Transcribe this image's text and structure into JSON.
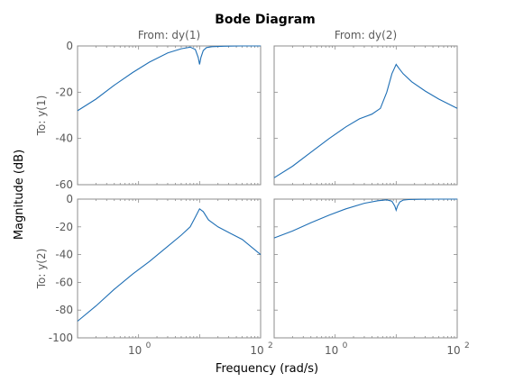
{
  "chart_data": {
    "type": "line",
    "title": "Bode Diagram",
    "xlabel": "Frequency  (rad/s)",
    "ylabel": "Magnitude (dB)",
    "x_scale": "log",
    "xlim": [
      0.1,
      100
    ],
    "x_tick_values": [
      1,
      100
    ],
    "x_tick_labels": [
      "10",
      "10"
    ],
    "x_tick_exponents": [
      "0",
      "2"
    ],
    "column_labels": [
      "From: dy(1)",
      "From: dy(2)"
    ],
    "row_labels": [
      "To: y(1)",
      "To: y(2)"
    ],
    "grid": false,
    "colors": {
      "line": "#1f6fb5",
      "axis": "#8c8c8c",
      "text": "#5a5a5a",
      "title": "#000000"
    },
    "panels": [
      {
        "row": 0,
        "col": 0,
        "ylim": [
          -60,
          0
        ],
        "y_ticks": [
          0,
          -20,
          -40,
          -60
        ],
        "y_tick_labels": [
          "0",
          "-20",
          "-40",
          "-60"
        ],
        "series": [
          {
            "x": [
              0.1,
              0.2,
              0.4,
              0.8,
              1.5,
              3,
              5,
              7,
              8.5,
              9.5,
              10,
              10.5,
              11.5,
              13,
              16,
              25,
              50,
              100
            ],
            "y": [
              -28,
              -23,
              -17,
              -11.5,
              -7,
              -3,
              -1.2,
              -0.5,
              -1.5,
              -5,
              -8,
              -5,
              -2,
              -0.7,
              -0.3,
              -0.1,
              0,
              0
            ]
          }
        ]
      },
      {
        "row": 0,
        "col": 1,
        "ylim": [
          -60,
          0
        ],
        "y_ticks": [
          0,
          -20,
          -40,
          -60
        ],
        "y_tick_labels": [
          "",
          "",
          "",
          ""
        ],
        "series": [
          {
            "x": [
              0.1,
              0.2,
              0.4,
              0.8,
              1.5,
              2.5,
              4,
              5.5,
              7,
              8.5,
              10,
              11,
              13,
              18,
              30,
              50,
              100
            ],
            "y": [
              -57,
              -52,
              -46,
              -40,
              -35,
              -31.5,
              -29.5,
              -27,
              -20,
              -12,
              -8,
              -9.5,
              -12,
              -15.5,
              -19.5,
              -23,
              -27
            ]
          }
        ]
      },
      {
        "row": 1,
        "col": 0,
        "ylim": [
          -100,
          0
        ],
        "y_ticks": [
          0,
          -20,
          -40,
          -60,
          -80,
          -100
        ],
        "y_tick_labels": [
          "0",
          "-20",
          "-40",
          "-60",
          "-80",
          "-100"
        ],
        "series": [
          {
            "x": [
              0.1,
              0.2,
              0.4,
              0.8,
              1.5,
              3,
              5,
              7,
              8.5,
              10,
              11.5,
              14,
              20,
              30,
              50,
              100
            ],
            "y": [
              -88,
              -77,
              -65,
              -54,
              -45,
              -34,
              -26,
              -20,
              -13,
              -7,
              -9,
              -15,
              -20,
              -24,
              -29,
              -40
            ]
          }
        ]
      },
      {
        "row": 1,
        "col": 1,
        "ylim": [
          -100,
          0
        ],
        "y_ticks": [
          0,
          -20,
          -40,
          -60,
          -80,
          -100
        ],
        "y_tick_labels": [
          "",
          "",
          "",
          "",
          "",
          ""
        ],
        "series": [
          {
            "x": [
              0.1,
              0.2,
              0.4,
              0.8,
              1.5,
              3,
              5,
              7,
              8.5,
              9.5,
              10,
              10.5,
              11.5,
              13,
              16,
              25,
              50,
              100
            ],
            "y": [
              -28,
              -23,
              -17,
              -11.5,
              -7,
              -3,
              -1.2,
              -0.5,
              -1.5,
              -5,
              -8,
              -5,
              -2,
              -0.7,
              -0.3,
              -0.1,
              0,
              0
            ]
          }
        ]
      }
    ]
  }
}
